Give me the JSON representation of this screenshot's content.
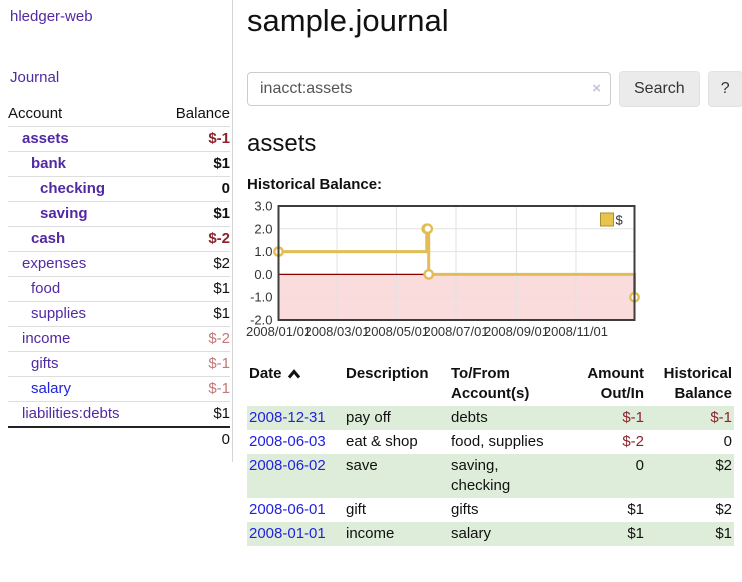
{
  "sidebar": {
    "brand": "hledger-web",
    "nav_journal": "Journal",
    "table": {
      "headers": [
        "Account",
        "Balance"
      ],
      "rows": [
        {
          "account": "assets",
          "balance": "$-1",
          "depth": 0,
          "bold": true,
          "balance_style": "neg-dark"
        },
        {
          "account": "bank",
          "balance": "$1",
          "depth": 1,
          "bold": true,
          "balance_style": "pos"
        },
        {
          "account": "checking",
          "balance": "0",
          "depth": 2,
          "bold": true,
          "balance_style": "pos"
        },
        {
          "account": "saving",
          "balance": "$1",
          "depth": 2,
          "bold": true,
          "balance_style": "pos"
        },
        {
          "account": "cash",
          "balance": "$-2",
          "depth": 1,
          "bold": true,
          "balance_style": "neg-dark"
        },
        {
          "account": "expenses",
          "balance": "$2",
          "depth": 0,
          "bold": false,
          "balance_style": "pos"
        },
        {
          "account": "food",
          "balance": "$1",
          "depth": 1,
          "bold": false,
          "balance_style": "pos"
        },
        {
          "account": "supplies",
          "balance": "$1",
          "depth": 1,
          "bold": false,
          "balance_style": "pos"
        },
        {
          "account": "income",
          "balance": "$-2",
          "depth": 0,
          "bold": false,
          "balance_style": "neg-light"
        },
        {
          "account": "gifts",
          "balance": "$-1",
          "depth": 1,
          "bold": false,
          "balance_style": "neg-light"
        },
        {
          "account": "salary",
          "balance": "$-1",
          "depth": 1,
          "bold": false,
          "balance_style": "neg-light",
          "link_color": "blue"
        },
        {
          "account": "liabilities:debts",
          "balance": "$1",
          "depth": 0,
          "bold": false,
          "balance_style": "pos"
        }
      ],
      "total": "0"
    }
  },
  "header": {
    "title": "sample.journal"
  },
  "search": {
    "value": "inacct:assets",
    "clear": "×",
    "button": "Search",
    "help": "?"
  },
  "account_page": {
    "title": "assets",
    "chart_heading": "Historical Balance:"
  },
  "chart_data": {
    "type": "line",
    "title": "Historical Balance",
    "legend": [
      {
        "label": "$",
        "color": "#e8c44c"
      }
    ],
    "x_ticks": [
      {
        "label": "2008/01/01",
        "day": 0
      },
      {
        "label": "2008/03/01",
        "day": 60
      },
      {
        "label": "2008/05/01",
        "day": 121
      },
      {
        "label": "2008/07/01",
        "day": 182
      },
      {
        "label": "2008/09/01",
        "day": 244
      },
      {
        "label": "2008/11/01",
        "day": 305
      }
    ],
    "x_max_day": 365,
    "y_ticks": [
      3.0,
      2.0,
      1.0,
      0.0,
      -1.0,
      -2.0
    ],
    "ylim": [
      -2,
      3
    ],
    "series": [
      {
        "name": "$",
        "color": "#e2bd55",
        "step": "after",
        "points": [
          {
            "date": "2008-01-01",
            "day": 0,
            "value": 1
          },
          {
            "date": "2008-06-01",
            "day": 152,
            "value": 2
          },
          {
            "date": "2008-06-02",
            "day": 153,
            "value": 2
          },
          {
            "date": "2008-06-03",
            "day": 154,
            "value": 0
          },
          {
            "date": "2008-12-31",
            "day": 365,
            "value": -1
          }
        ]
      }
    ],
    "negative_region_color": "#fbdcdc",
    "zero_line_color": "#8b0000",
    "grid_color": "#e2e2e2",
    "border_color": "#3d3d3d",
    "legend_position": "top-right",
    "grid": true
  },
  "transactions": {
    "headers": [
      {
        "lines": [
          "Date"
        ],
        "align": "left",
        "sort": "asc"
      },
      {
        "lines": [
          "Description"
        ],
        "align": "left"
      },
      {
        "lines": [
          "To/From",
          "Account(s)"
        ],
        "align": "left"
      },
      {
        "lines": [
          "Amount",
          "Out/In"
        ],
        "align": "right"
      },
      {
        "lines": [
          "Historical",
          "Balance"
        ],
        "align": "right"
      }
    ],
    "rows": [
      {
        "date": "2008-12-31",
        "description": "pay off",
        "accounts": "debts",
        "amount": "$-1",
        "amount_neg": true,
        "balance": "$-1",
        "balance_neg": true
      },
      {
        "date": "2008-06-03",
        "description": "eat & shop",
        "accounts": "food, supplies",
        "amount": "$-2",
        "amount_neg": true,
        "balance": "0",
        "balance_neg": false
      },
      {
        "date": "2008-06-02",
        "description": "save",
        "accounts": "saving, checking",
        "amount": "0",
        "amount_neg": false,
        "balance": "$2",
        "balance_neg": false
      },
      {
        "date": "2008-06-01",
        "description": "gift",
        "accounts": "gifts",
        "amount": "$1",
        "amount_neg": false,
        "balance": "$2",
        "balance_neg": false
      },
      {
        "date": "2008-01-01",
        "description": "income",
        "accounts": "salary",
        "amount": "$1",
        "amount_neg": false,
        "balance": "$1",
        "balance_neg": false
      }
    ]
  },
  "colors": {
    "link_purple": "#5229a3",
    "link_blue": "#2222dd",
    "negative_dark": "#8c232d",
    "negative_light": "#c27878",
    "row_stripe_green": "#deedd9",
    "button_gray": "#ebebeb",
    "chart_line_gold": "#e2bd55"
  }
}
